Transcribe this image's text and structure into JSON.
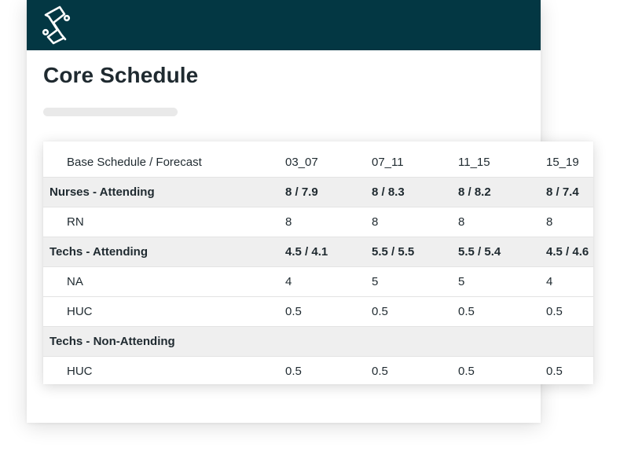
{
  "page": {
    "title": "Core Schedule"
  },
  "table": {
    "header": {
      "label": "Base Schedule / Forecast",
      "columns": [
        "03_07",
        "07_11",
        "11_15",
        "15_19"
      ]
    },
    "rows": [
      {
        "label": "Nurses - Attending",
        "type": "group",
        "values": [
          "8 / 7.9",
          "8 / 8.3",
          "8 / 8.2",
          "8 / 7.4"
        ]
      },
      {
        "label": "RN",
        "type": "sub",
        "values": [
          "8",
          "8",
          "8",
          "8"
        ]
      },
      {
        "label": "Techs - Attending",
        "type": "group",
        "values": [
          "4.5 / 4.1",
          "5.5 / 5.5",
          "5.5 / 5.4",
          "4.5 / 4.6"
        ]
      },
      {
        "label": "NA",
        "type": "sub",
        "values": [
          "4",
          "5",
          "5",
          "4"
        ]
      },
      {
        "label": "HUC",
        "type": "sub",
        "values": [
          "0.5",
          "0.5",
          "0.5",
          "0.5"
        ]
      },
      {
        "label": "Techs - Non-Attending",
        "type": "group",
        "values": [
          "",
          "",
          "",
          ""
        ]
      },
      {
        "label": "HUC",
        "type": "sub",
        "values": [
          "0.5",
          "0.5",
          "0.5",
          "0.5"
        ]
      }
    ]
  },
  "colors": {
    "header_bg": "#033743",
    "group_row_bg": "#efefef",
    "text": "#1f2a30"
  },
  "icons": {
    "logo": "brand-logo-icon"
  }
}
